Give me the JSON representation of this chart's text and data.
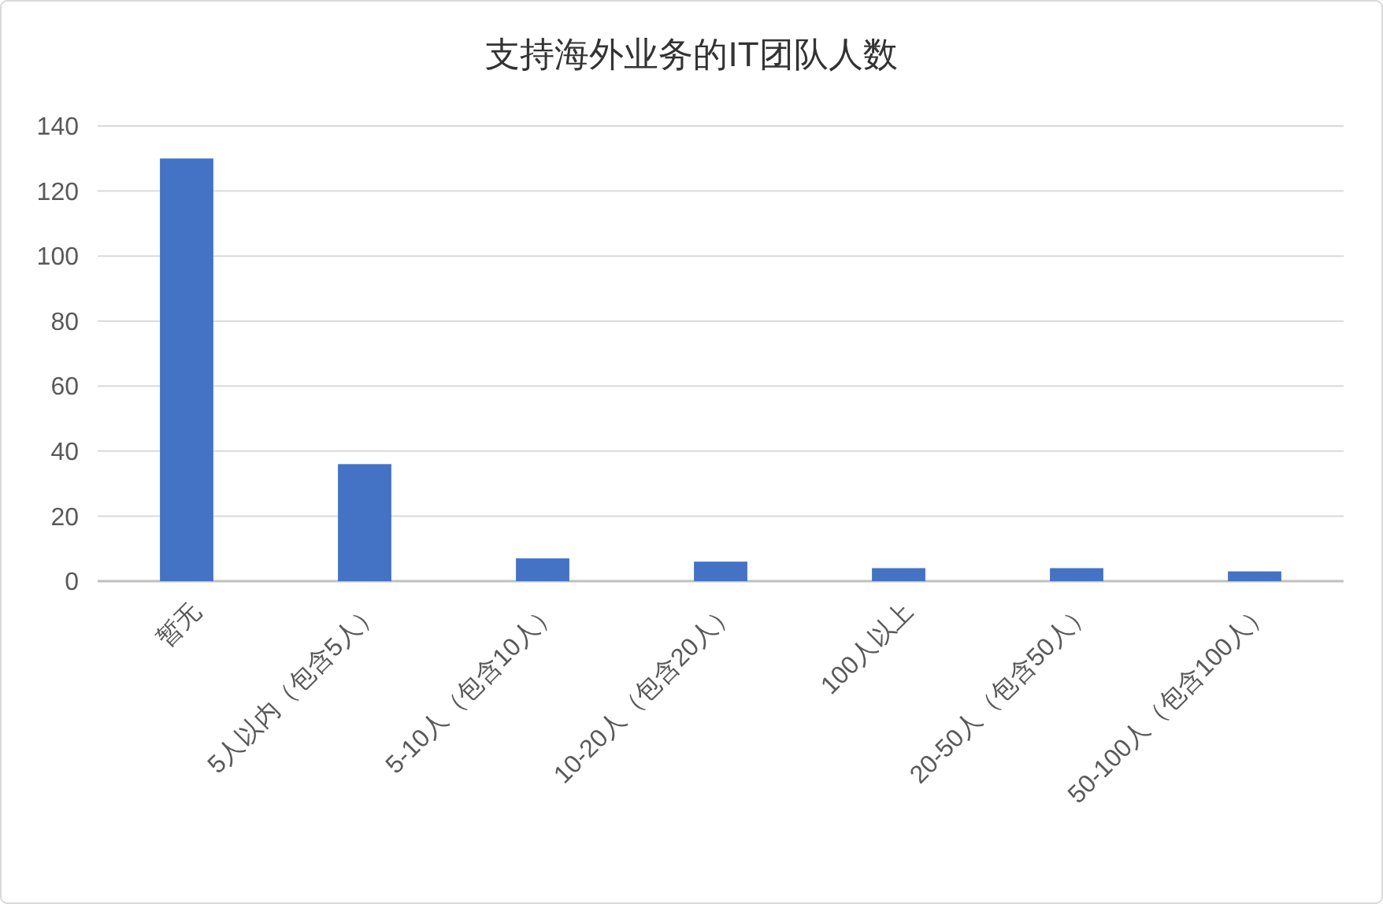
{
  "chart_data": {
    "type": "bar",
    "title": "支持海外业务的IT团队人数",
    "categories": [
      "暂无",
      "5人以内（包含5人）",
      "5-10人（包含10人）",
      "10-20人（包含20人）",
      "100人以上",
      "20-50人（包含50人）",
      "50-100人（包含100人）"
    ],
    "values": [
      130,
      36,
      7,
      6,
      4,
      4,
      3
    ],
    "color": "#4472c4",
    "ylim": [
      0,
      140
    ],
    "yticks": [
      0,
      20,
      40,
      60,
      80,
      100,
      120,
      140
    ],
    "grid": "y"
  }
}
